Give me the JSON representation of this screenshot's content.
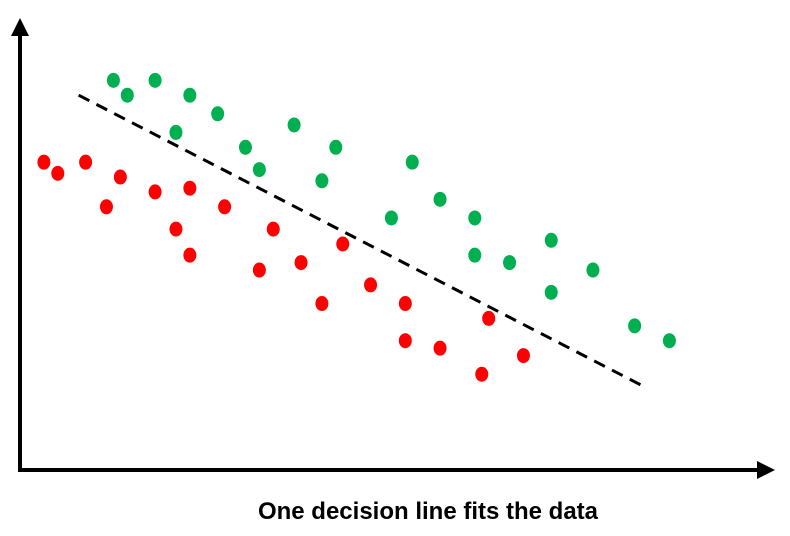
{
  "chart_data": {
    "type": "scatter",
    "title": "One decision line fits the data",
    "xlabel": "",
    "ylabel": "",
    "xlim": [
      0,
      100
    ],
    "ylim": [
      0,
      100
    ],
    "grid": false,
    "ticks": false,
    "series": [
      {
        "color": "#00b050",
        "points": [
          [
            12,
            94
          ],
          [
            14,
            90
          ],
          [
            18,
            94
          ],
          [
            23,
            90
          ],
          [
            21,
            80
          ],
          [
            27,
            85
          ],
          [
            31,
            76
          ],
          [
            33,
            70
          ],
          [
            38,
            82
          ],
          [
            42,
            67
          ],
          [
            44,
            76
          ],
          [
            52,
            57
          ],
          [
            55,
            72
          ],
          [
            59,
            62
          ],
          [
            64,
            57
          ],
          [
            64,
            47
          ],
          [
            69,
            45
          ],
          [
            75,
            51
          ],
          [
            75,
            37
          ],
          [
            81,
            43
          ],
          [
            87,
            28
          ],
          [
            92,
            24
          ]
        ]
      },
      {
        "color": "#ff0000",
        "points": [
          [
            2,
            72
          ],
          [
            4,
            69
          ],
          [
            8,
            72
          ],
          [
            11,
            60
          ],
          [
            13,
            68
          ],
          [
            18,
            64
          ],
          [
            21,
            54
          ],
          [
            23,
            65
          ],
          [
            23,
            47
          ],
          [
            28,
            60
          ],
          [
            33,
            43
          ],
          [
            35,
            54
          ],
          [
            39,
            45
          ],
          [
            42,
            34
          ],
          [
            45,
            50
          ],
          [
            49,
            39
          ],
          [
            54,
            34
          ],
          [
            54,
            24
          ],
          [
            59,
            22
          ],
          [
            65,
            15
          ],
          [
            66,
            30
          ],
          [
            71,
            20
          ]
        ]
      }
    ],
    "decision_line": {
      "style": "dashed",
      "color": "#000000",
      "from": [
        7,
        90
      ],
      "to": [
        88,
        12
      ]
    }
  }
}
